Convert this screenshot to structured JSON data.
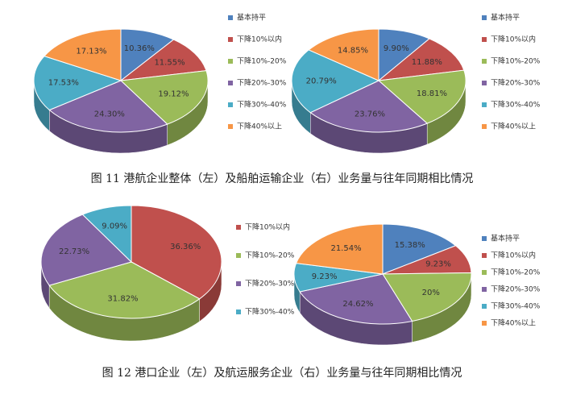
{
  "chart_data": [
    {
      "type": "pie",
      "categories": [
        "基本持平",
        "下降10%以内",
        "下降10%-20%",
        "下降20%-30%",
        "下降30%-40%",
        "下降40%以上"
      ],
      "values": [
        10.36,
        11.55,
        19.12,
        24.3,
        17.53,
        17.13
      ],
      "value_labels": [
        "10.36%",
        "11.55%",
        "19.12%",
        "24.30%",
        "17.53%",
        "17.13%"
      ],
      "colors": [
        "#4f81bd",
        "#c0504d",
        "#9bbb59",
        "#8064a2",
        "#4bacc6",
        "#f79646"
      ]
    },
    {
      "type": "pie",
      "categories": [
        "基本持平",
        "下降10%以内",
        "下降10%-20%",
        "下降20%-30%",
        "下降30%-40%",
        "下降40%以上"
      ],
      "values": [
        9.9,
        11.88,
        18.81,
        23.76,
        20.79,
        14.85
      ],
      "value_labels": [
        "9.90%",
        "11.88%",
        "18.81%",
        "23.76%",
        "20.79%",
        "14.85%"
      ],
      "colors": [
        "#4f81bd",
        "#c0504d",
        "#9bbb59",
        "#8064a2",
        "#4bacc6",
        "#f79646"
      ]
    },
    {
      "type": "pie",
      "categories": [
        "下降10%以内",
        "下降10%-20%",
        "下降20%-30%",
        "下降30%-40%"
      ],
      "values": [
        36.36,
        31.82,
        22.73,
        9.09
      ],
      "value_labels": [
        "36.36%",
        "31.82%",
        "22.73%",
        "9.09%"
      ],
      "colors": [
        "#c0504d",
        "#9bbb59",
        "#8064a2",
        "#4bacc6"
      ]
    },
    {
      "type": "pie",
      "categories": [
        "基本持平",
        "下降10%以内",
        "下降10%-20%",
        "下降20%-30%",
        "下降30%-40%",
        "下降40%以上"
      ],
      "values": [
        15.38,
        9.23,
        20,
        24.62,
        9.23,
        21.54
      ],
      "value_labels": [
        "15.38%",
        "9.23%",
        "20%",
        "24.62%",
        "9.23%",
        "21.54%"
      ],
      "colors": [
        "#4f81bd",
        "#c0504d",
        "#9bbb59",
        "#8064a2",
        "#4bacc6",
        "#f79646"
      ]
    }
  ],
  "figure_captions": [
    "图 11 港航企业整体（左）及船舶运输企业（右）业务量与往年同期相比情况",
    "图 12 港口企业（左）及航运服务企业（右）业务量与往年同期相比情况"
  ]
}
